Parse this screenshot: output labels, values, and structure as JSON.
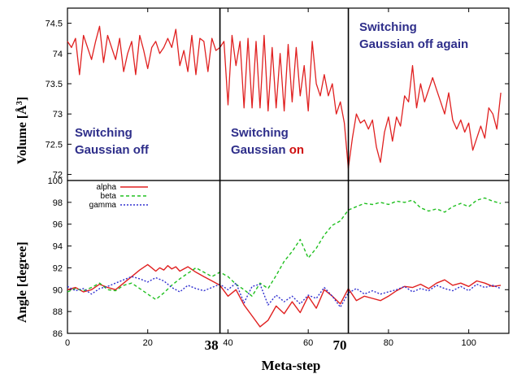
{
  "chart_data": [
    {
      "type": "line",
      "panel": "top",
      "ylabel": "Volume [Å³]",
      "xlim": [
        0,
        110
      ],
      "ylim": [
        71.9,
        74.75
      ],
      "yticks": [
        "72",
        "72.5",
        "73",
        "73.5",
        "74",
        "74.5"
      ],
      "grid": false,
      "color": "#e02020",
      "x": [
        0,
        1,
        2,
        3,
        4,
        5,
        6,
        7,
        8,
        9,
        10,
        11,
        12,
        13,
        14,
        15,
        16,
        17,
        18,
        19,
        20,
        21,
        22,
        23,
        24,
        25,
        26,
        27,
        28,
        29,
        30,
        31,
        32,
        33,
        34,
        35,
        36,
        37,
        38,
        39,
        40,
        41,
        42,
        43,
        44,
        45,
        46,
        47,
        48,
        49,
        50,
        51,
        52,
        53,
        54,
        55,
        56,
        57,
        58,
        59,
        60,
        61,
        62,
        63,
        64,
        65,
        66,
        67,
        68,
        69,
        70,
        71,
        72,
        73,
        74,
        75,
        76,
        77,
        78,
        79,
        80,
        81,
        82,
        83,
        84,
        85,
        86,
        87,
        88,
        89,
        90,
        91,
        92,
        93,
        94,
        95,
        96,
        97,
        98,
        99,
        100,
        101,
        102,
        103,
        104,
        105,
        106,
        107,
        108
      ],
      "values": [
        74.2,
        74.1,
        74.25,
        73.65,
        74.3,
        74.1,
        73.9,
        74.2,
        74.45,
        73.85,
        74.3,
        74.1,
        73.9,
        74.25,
        73.7,
        74.0,
        74.2,
        73.65,
        74.3,
        74.05,
        73.75,
        74.1,
        74.2,
        74.0,
        74.1,
        74.25,
        74.1,
        74.4,
        73.8,
        74.05,
        73.7,
        74.3,
        73.65,
        74.25,
        74.2,
        73.7,
        74.25,
        74.05,
        74.1,
        74.2,
        73.15,
        74.3,
        73.8,
        74.2,
        73.1,
        74.25,
        73.1,
        74.2,
        73.1,
        74.3,
        73.05,
        74.1,
        73.1,
        74.0,
        73.05,
        74.15,
        73.2,
        74.1,
        73.3,
        73.8,
        73.05,
        74.2,
        73.5,
        73.3,
        73.65,
        73.3,
        73.5,
        73.0,
        73.2,
        72.85,
        72.1,
        72.6,
        73.0,
        72.85,
        72.9,
        72.75,
        72.9,
        72.45,
        72.2,
        72.7,
        72.95,
        72.55,
        72.95,
        72.8,
        73.3,
        73.2,
        73.8,
        73.1,
        73.5,
        73.2,
        73.4,
        73.6,
        73.4,
        73.2,
        73.0,
        73.35,
        72.9,
        72.75,
        72.9,
        72.7,
        72.85,
        72.4,
        72.6,
        72.8,
        72.6,
        73.1,
        73.0,
        72.75,
        73.35
      ]
    },
    {
      "type": "line",
      "panel": "bottom",
      "ylabel": "Angle [degree]",
      "xlabel": "Meta-step",
      "xlim": [
        0,
        110
      ],
      "ylim": [
        86,
        100
      ],
      "xticks": [
        "0",
        "20",
        "40",
        "60",
        "80",
        "100"
      ],
      "yticks": [
        "86",
        "88",
        "90",
        "92",
        "94",
        "96",
        "98",
        "100"
      ],
      "grid": false,
      "legend_position": "top-left",
      "series": [
        {
          "name": "alpha",
          "color": "#e02020",
          "dash": "solid",
          "x": [
            0,
            2,
            4,
            6,
            8,
            10,
            12,
            14,
            16,
            18,
            20,
            21,
            22,
            23,
            24,
            25,
            26,
            27,
            28,
            29,
            30,
            32,
            34,
            36,
            38,
            40,
            42,
            44,
            46,
            48,
            50,
            52,
            54,
            56,
            58,
            60,
            62,
            64,
            66,
            68,
            70,
            72,
            74,
            76,
            78,
            80,
            82,
            84,
            86,
            88,
            90,
            92,
            94,
            96,
            98,
            100,
            102,
            104,
            106,
            108
          ],
          "values": [
            90.0,
            90.2,
            89.8,
            90.0,
            90.5,
            90.2,
            90.0,
            90.6,
            91.2,
            91.8,
            92.3,
            92.0,
            91.7,
            92.0,
            91.8,
            92.2,
            91.9,
            92.1,
            91.7,
            91.9,
            92.1,
            91.6,
            91.2,
            90.8,
            90.4,
            89.4,
            90.0,
            88.6,
            87.6,
            86.6,
            87.2,
            88.5,
            87.8,
            88.9,
            87.9,
            89.4,
            88.3,
            90.0,
            89.4,
            88.7,
            90.1,
            89.0,
            89.4,
            89.2,
            89.0,
            89.4,
            89.9,
            90.3,
            90.2,
            90.5,
            90.1,
            90.6,
            90.9,
            90.4,
            90.6,
            90.3,
            90.8,
            90.6,
            90.3,
            90.4
          ]
        },
        {
          "name": "beta",
          "color": "#20c020",
          "dash": "dashed",
          "x": [
            0,
            2,
            4,
            6,
            8,
            10,
            12,
            14,
            16,
            18,
            20,
            22,
            24,
            26,
            28,
            30,
            32,
            34,
            36,
            38,
            40,
            42,
            44,
            46,
            48,
            50,
            52,
            54,
            56,
            58,
            60,
            62,
            64,
            66,
            68,
            70,
            72,
            74,
            76,
            78,
            80,
            82,
            84,
            86,
            88,
            90,
            92,
            94,
            96,
            98,
            100,
            102,
            104,
            106,
            108
          ],
          "values": [
            89.8,
            90.1,
            89.9,
            90.2,
            90.6,
            90.0,
            89.9,
            90.4,
            90.6,
            90.1,
            89.6,
            89.1,
            89.7,
            90.4,
            91.0,
            91.5,
            92.0,
            91.6,
            91.2,
            91.6,
            91.2,
            90.5,
            90.0,
            89.4,
            90.6,
            90.1,
            91.3,
            92.6,
            93.5,
            94.6,
            92.9,
            93.8,
            95.0,
            95.9,
            96.3,
            97.3,
            97.6,
            97.9,
            97.8,
            98.0,
            97.8,
            98.1,
            98.0,
            98.2,
            97.5,
            97.2,
            97.4,
            97.1,
            97.6,
            97.9,
            97.6,
            98.2,
            98.4,
            98.1,
            97.9
          ]
        },
        {
          "name": "gamma",
          "color": "#3030d0",
          "dash": "dotted",
          "x": [
            0,
            2,
            4,
            6,
            8,
            10,
            12,
            14,
            16,
            18,
            20,
            22,
            24,
            26,
            28,
            30,
            32,
            34,
            36,
            38,
            40,
            42,
            44,
            46,
            48,
            50,
            52,
            54,
            56,
            58,
            60,
            62,
            64,
            66,
            68,
            70,
            72,
            74,
            76,
            78,
            80,
            82,
            84,
            86,
            88,
            90,
            92,
            94,
            96,
            98,
            100,
            102,
            104,
            106,
            108
          ],
          "values": [
            90.3,
            89.9,
            90.1,
            89.6,
            90.1,
            90.3,
            90.6,
            90.9,
            91.2,
            91.0,
            90.7,
            91.1,
            90.8,
            90.2,
            89.8,
            90.4,
            90.1,
            89.9,
            90.2,
            90.5,
            90.0,
            90.6,
            88.8,
            90.3,
            90.5,
            88.6,
            89.5,
            88.9,
            89.4,
            88.7,
            89.5,
            89.2,
            90.2,
            89.4,
            88.4,
            89.7,
            90.1,
            89.6,
            89.9,
            89.6,
            89.8,
            90.0,
            90.3,
            89.8,
            90.1,
            89.9,
            90.4,
            90.1,
            89.9,
            90.3,
            89.9,
            90.5,
            90.2,
            90.4,
            90.1
          ]
        }
      ]
    }
  ],
  "vlines": [
    {
      "x": 38,
      "label": "38"
    },
    {
      "x": 70,
      "label": "70"
    }
  ],
  "annotations": {
    "off_line1": "Switching",
    "off_line2": "Gaussian off",
    "on_line1": "Switching",
    "on_line2_a": "Gaussian ",
    "on_line2_b": "on",
    "again_line1": "Switching",
    "again_line2": "Gaussian off again"
  },
  "labels": {
    "top_ylabel_main": "Volume [",
    "top_ylabel_unit": "Å",
    "top_ylabel_sup": "3",
    "top_ylabel_end": "]",
    "bottom_ylabel": "Angle [degree]",
    "xlabel": "Meta-step"
  }
}
